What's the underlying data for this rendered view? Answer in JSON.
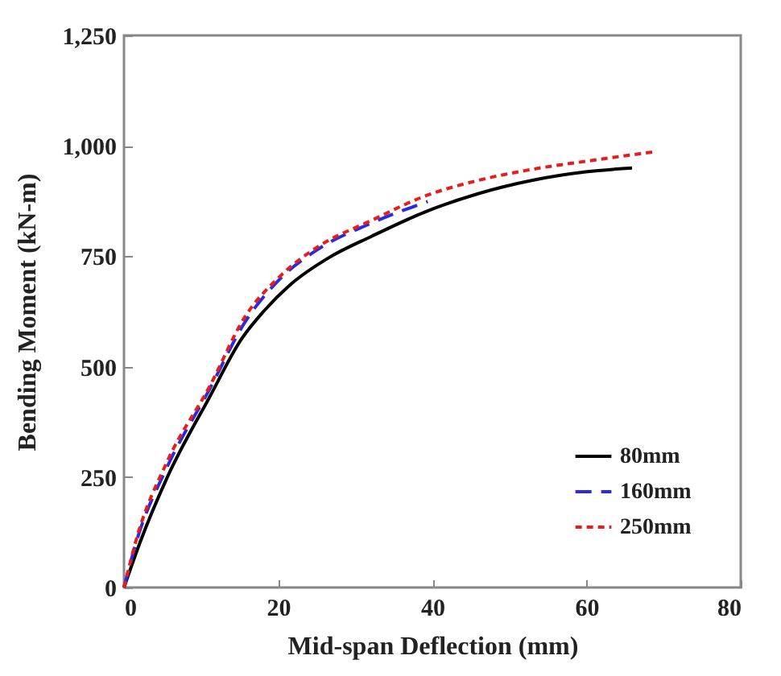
{
  "chart_data": {
    "type": "line",
    "xlabel": "Mid-span Deflection (mm)",
    "ylabel": "Bending Moment (kN-m)",
    "xlim": [
      0,
      80
    ],
    "xticks": [
      0,
      20,
      40,
      60,
      80
    ],
    "ylim": [
      0,
      1250
    ],
    "yticks": [
      0,
      250,
      500,
      750,
      {
        "value": 1000,
        "label": "1,000"
      },
      {
        "value": 1250,
        "label": "1,250"
      }
    ],
    "grid": false,
    "legend": "bottom right",
    "marker": "none",
    "series": [
      {
        "name": "80mm",
        "color": "#000000",
        "line_style": "solid",
        "x": [
          0,
          2.1,
          5.6,
          11.1,
          15.3,
          18.1,
          21.6,
          26.5,
          32.1,
          39,
          46,
          53,
          59.9,
          65.9
        ],
        "values": [
          0,
          103,
          249,
          431,
          564,
          625,
          686,
          746,
          795,
          850,
          892,
          922,
          941,
          950
        ]
      },
      {
        "name": "160mm",
        "color": "#2a2ae0",
        "line_style": "dashed",
        "x": [
          0,
          1.7,
          5.6,
          11.1,
          15.7,
          20.2,
          25.1,
          32.1,
          39.4
        ],
        "values": [
          0,
          109,
          273,
          449,
          601,
          698,
          765,
          825,
          874
        ]
      },
      {
        "name": "250mm",
        "color": "#e81c1c",
        "line_style": "dotted",
        "x": [
          0,
          1.7,
          5.6,
          11.1,
          15.7,
          20.2,
          25.1,
          32.1,
          39,
          46,
          53,
          59.9,
          69
        ],
        "values": [
          0,
          115,
          285,
          455,
          613,
          704,
          771,
          831,
          886,
          922,
          947,
          965,
          987
        ]
      }
    ]
  }
}
